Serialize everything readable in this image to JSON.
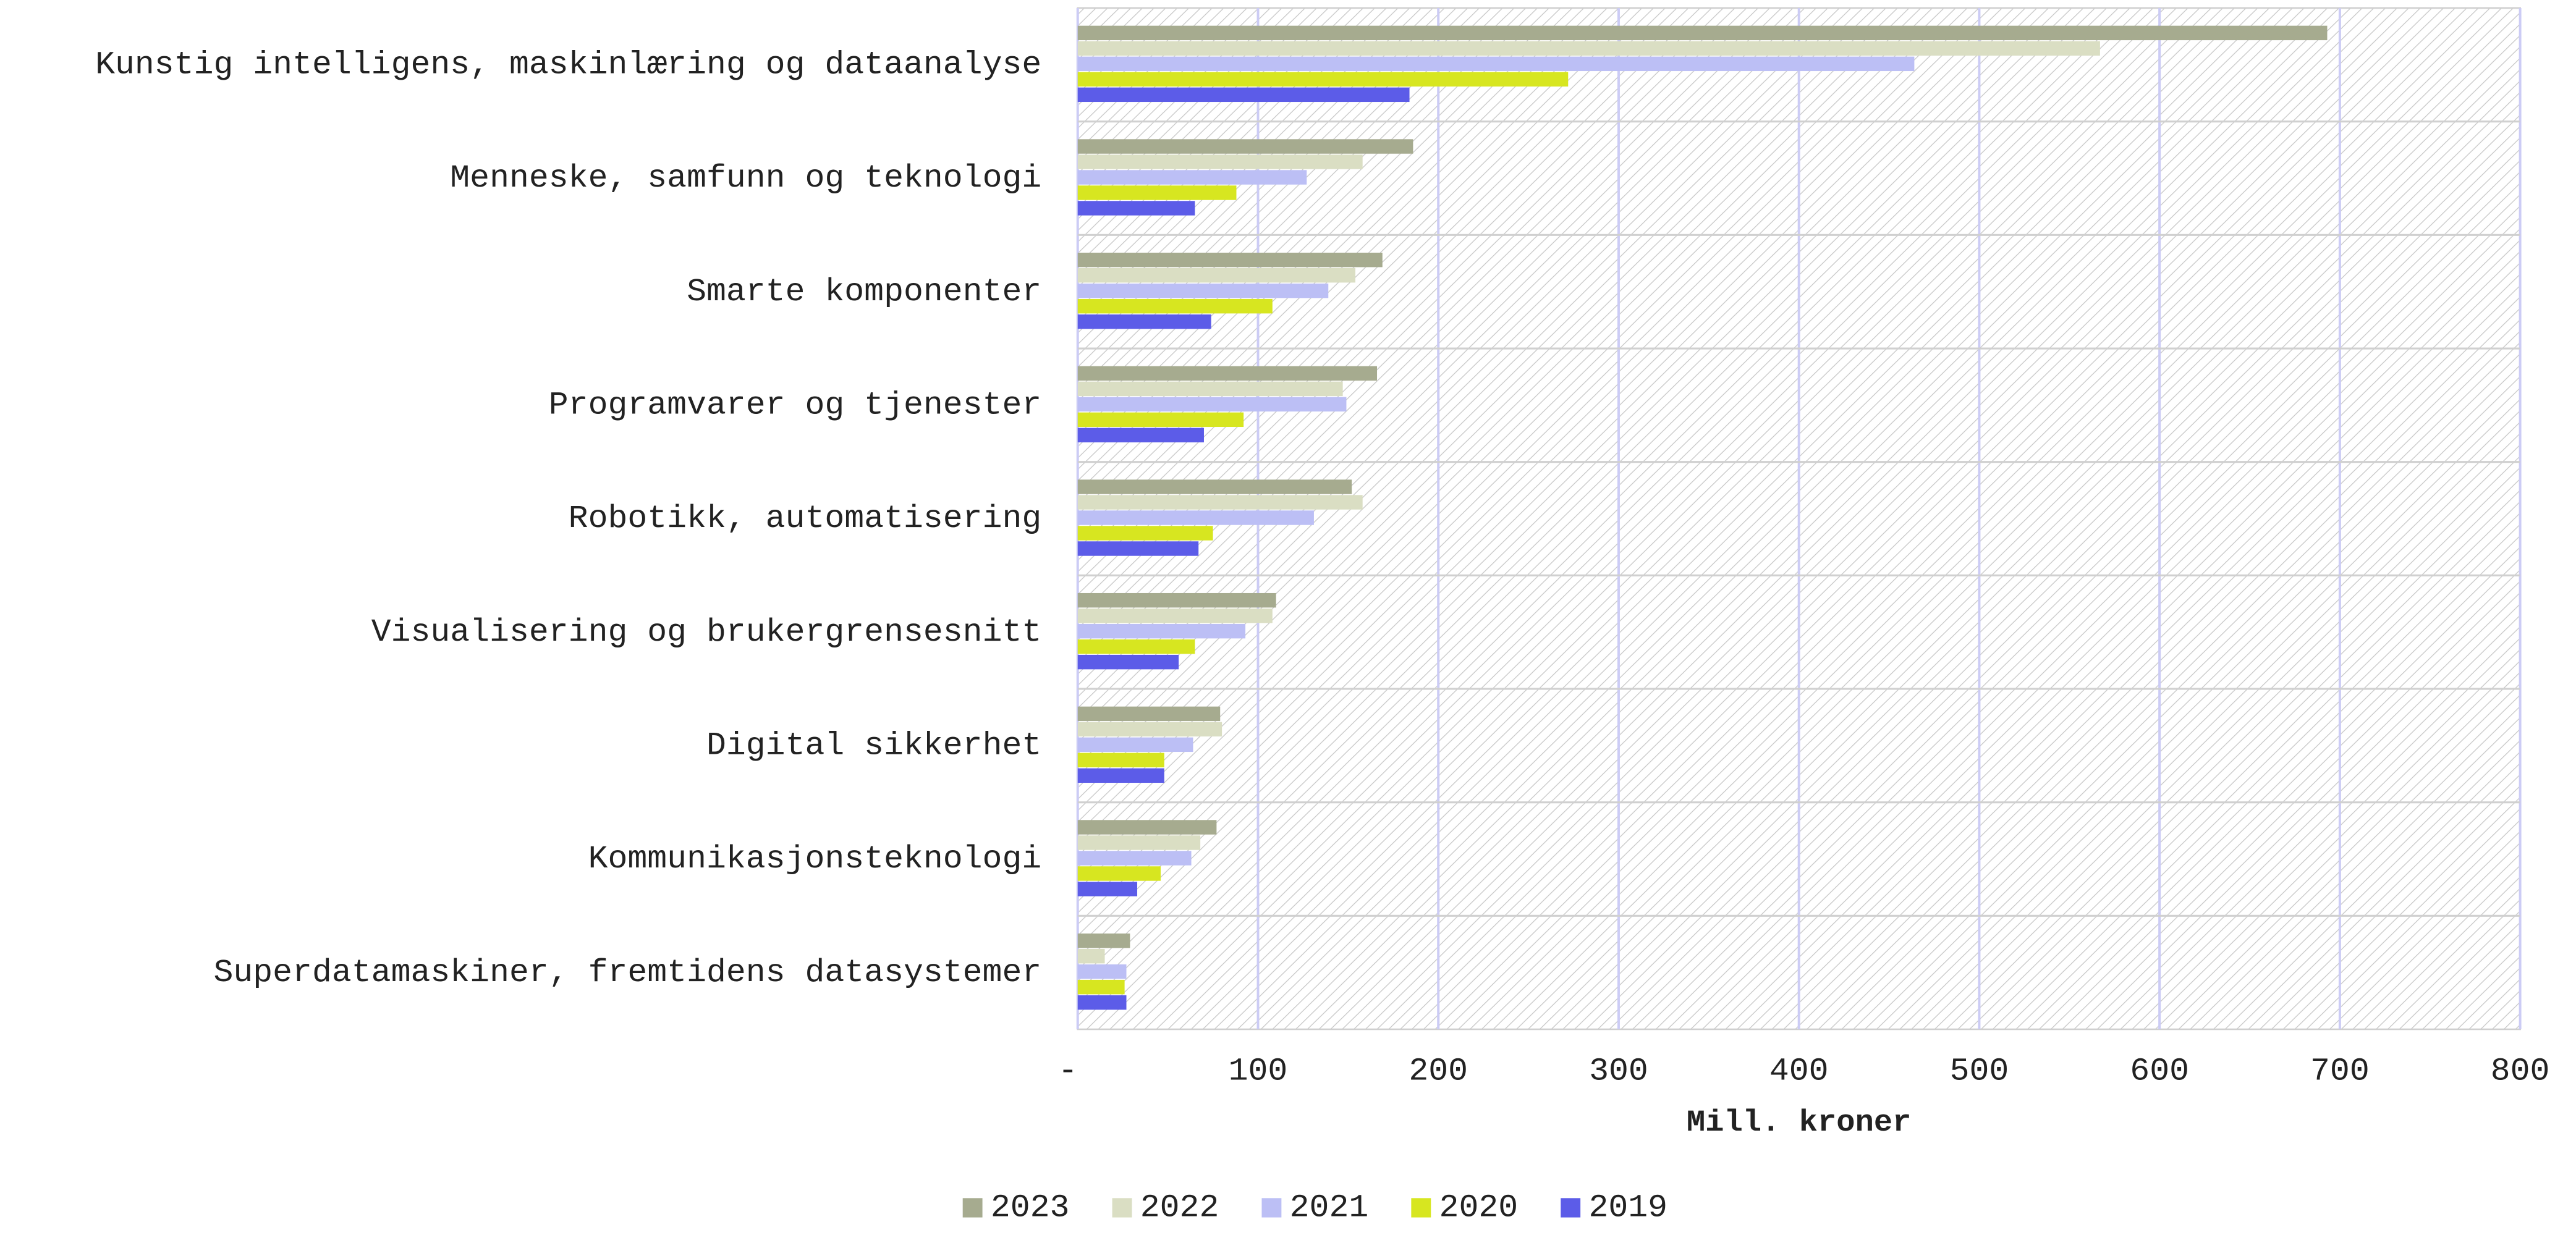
{
  "chart_data": {
    "type": "bar",
    "orientation": "horizontal",
    "xlabel": "Mill. kroner",
    "categories": [
      "Kunstig intelligens, maskinlæring og dataanalyse",
      "Menneske, samfunn og teknologi",
      "Smarte komponenter",
      "Programvarer og tjenester",
      "Robotikk, automatisering",
      "Visualisering og brukergrensesnitt",
      "Digital sikkerhet",
      "Kommunikasjonsteknologi",
      "Superdatamaskiner, fremtidens datasystemer"
    ],
    "series": [
      {
        "name": "2023",
        "color": "#a6ab8f",
        "values": [
          693,
          186,
          169,
          166,
          152,
          110,
          79,
          77,
          29
        ]
      },
      {
        "name": "2022",
        "color": "#dadec3",
        "values": [
          567,
          158,
          154,
          147,
          158,
          108,
          80,
          68,
          15
        ]
      },
      {
        "name": "2021",
        "color": "#bcbff5",
        "values": [
          464,
          127,
          139,
          149,
          131,
          93,
          64,
          63,
          27
        ]
      },
      {
        "name": "2020",
        "color": "#d7e620",
        "values": [
          272,
          88,
          108,
          92,
          75,
          65,
          48,
          46,
          26
        ]
      },
      {
        "name": "2019",
        "color": "#5c5ce8",
        "values": [
          184,
          65,
          74,
          70,
          67,
          56,
          48,
          33,
          27
        ]
      }
    ],
    "xlim": [
      0,
      800
    ],
    "xticks": [
      {
        "value": 0,
        "label": "-"
      },
      100,
      200,
      300,
      400,
      500,
      600,
      700,
      800
    ],
    "grid": true,
    "legend": "bottom"
  }
}
